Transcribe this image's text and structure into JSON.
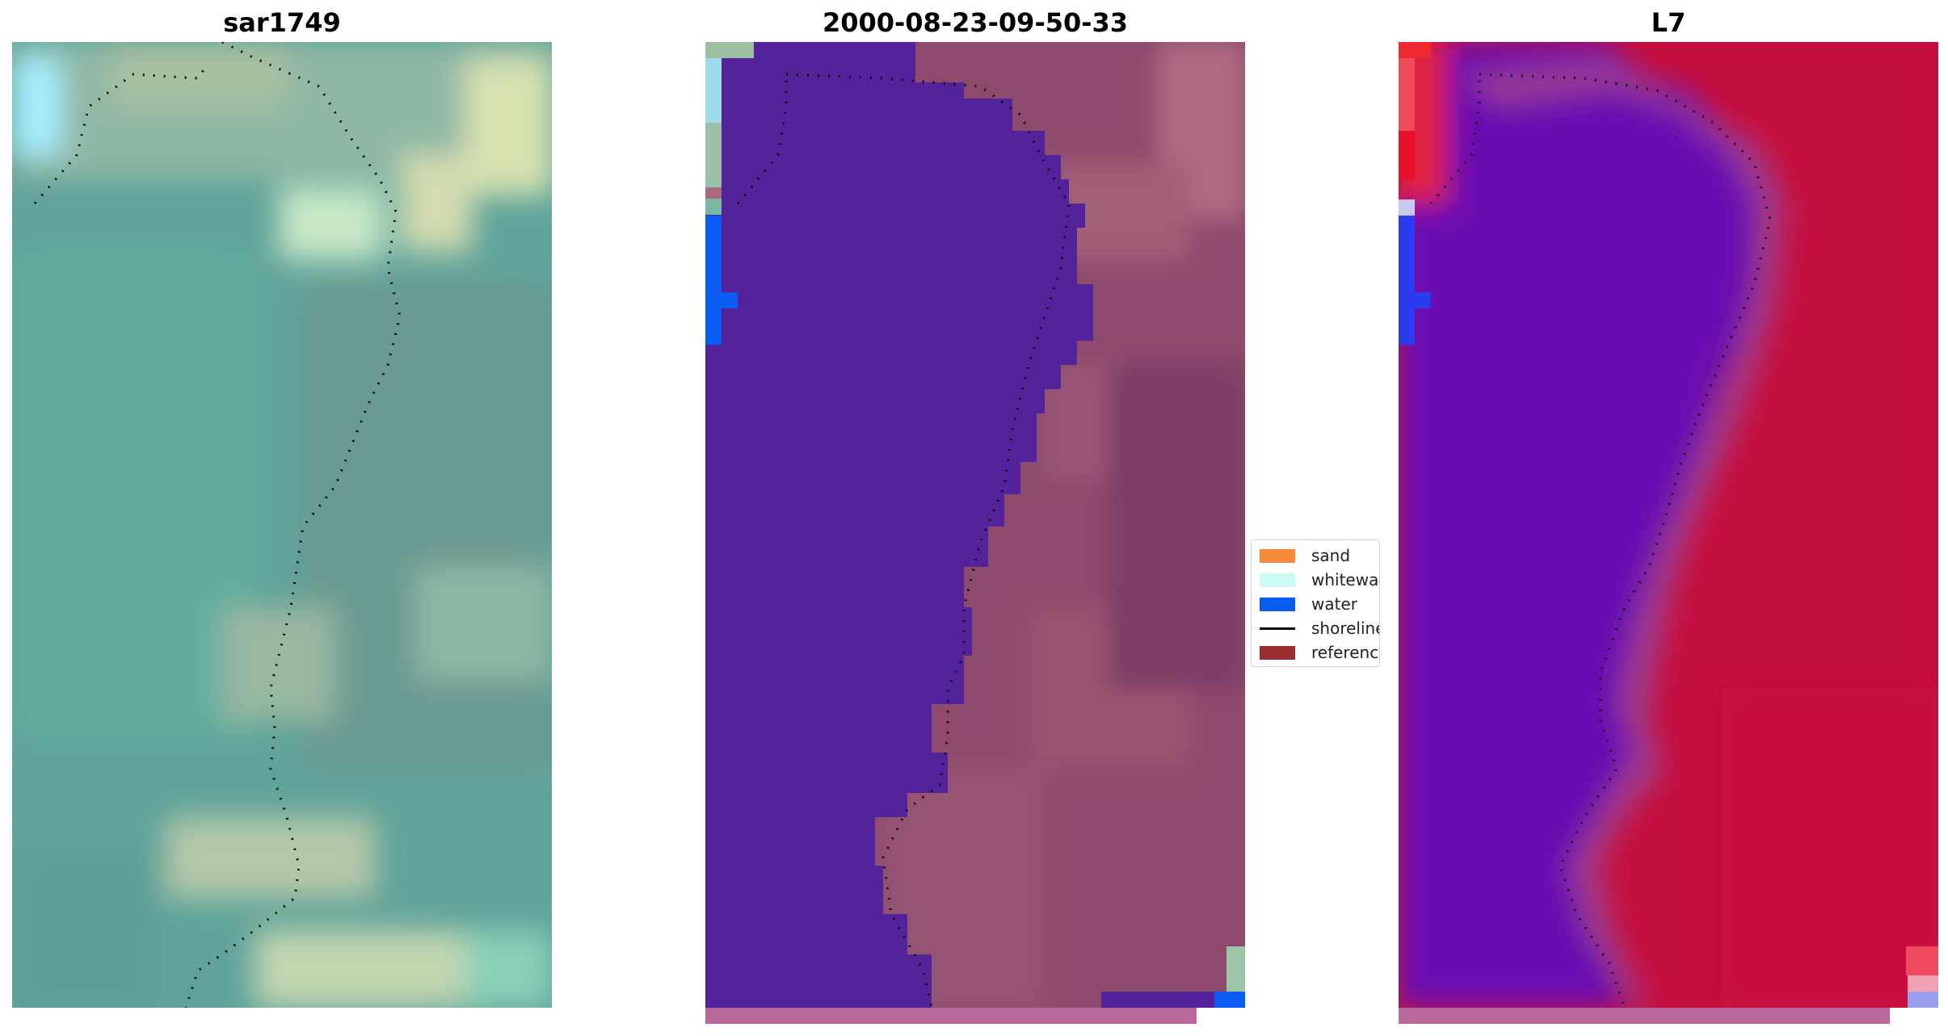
{
  "panels": [
    {
      "title": "sar1749"
    },
    {
      "title": "2000-08-23-09-50-33"
    },
    {
      "title": "L7"
    }
  ],
  "legend": {
    "items": [
      {
        "label": "sand",
        "color": "#fb8a38"
      },
      {
        "label": "whitewater",
        "color": "#c9fbf4"
      },
      {
        "label": "water",
        "color": "#0b5cf2"
      },
      {
        "label": "shoreline",
        "color": "#000000"
      },
      {
        "label": "reference shoreline",
        "color": "#9a2e33"
      }
    ]
  },
  "colors": {
    "water_class": "#54229a",
    "land_overlay": "#8e4a6c",
    "false_color_water": "#6a10b0",
    "false_color_land": "#c4103e",
    "bottom_strip": "#b8699a"
  }
}
